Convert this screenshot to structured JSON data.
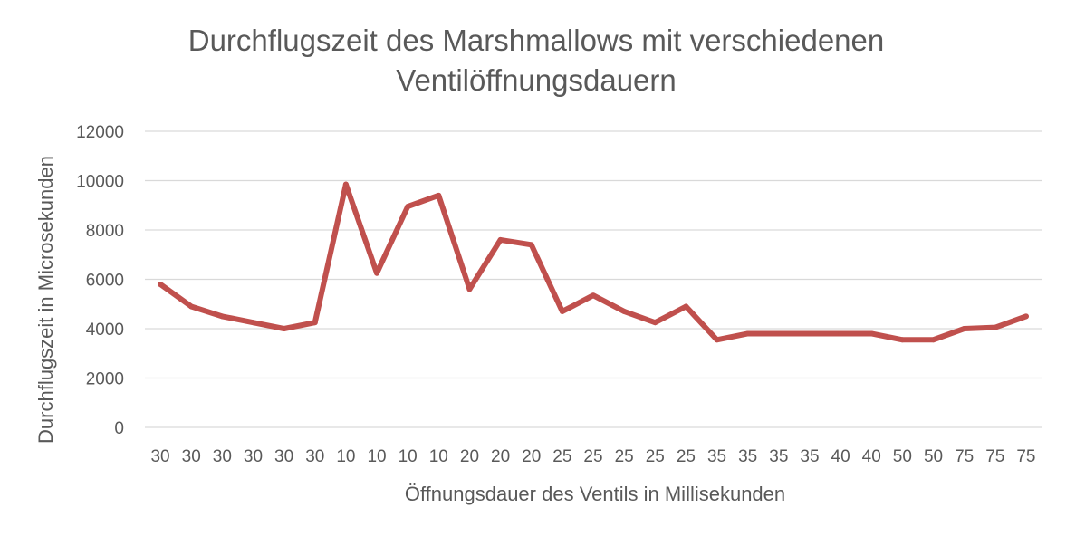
{
  "chart_data": {
    "type": "line",
    "title_lines": [
      "Durchflugszeit des Marshmallows mit verschiedenen",
      "Ventilöffnungsdauern"
    ],
    "xlabel": "Öffnungsdauer des Ventils in Millisekunden",
    "ylabel": "Durchflugszeit in Microsekunden",
    "categories": [
      "30",
      "30",
      "30",
      "30",
      "30",
      "30",
      "10",
      "10",
      "10",
      "10",
      "20",
      "20",
      "20",
      "25",
      "25",
      "25",
      "25",
      "25",
      "35",
      "35",
      "35",
      "35",
      "40",
      "40",
      "50",
      "50",
      "75",
      "75",
      "75"
    ],
    "ylim": [
      0,
      12000
    ],
    "yticks": [
      0,
      2000,
      4000,
      6000,
      8000,
      10000,
      12000
    ],
    "grid": true,
    "legend": "none",
    "colors": {
      "line": "#c0504d",
      "grid": "#d9d9d9",
      "text": "#595959"
    },
    "series": [
      {
        "values": [
          5800,
          4900,
          4500,
          4250,
          4000,
          4250,
          9850,
          6250,
          8950,
          9400,
          5600,
          7600,
          7400,
          4700,
          5350,
          4700,
          4250,
          4900,
          3550,
          3800,
          3800,
          3800,
          3800,
          3800,
          3550,
          3550,
          4000,
          4050,
          4500
        ]
      }
    ]
  }
}
